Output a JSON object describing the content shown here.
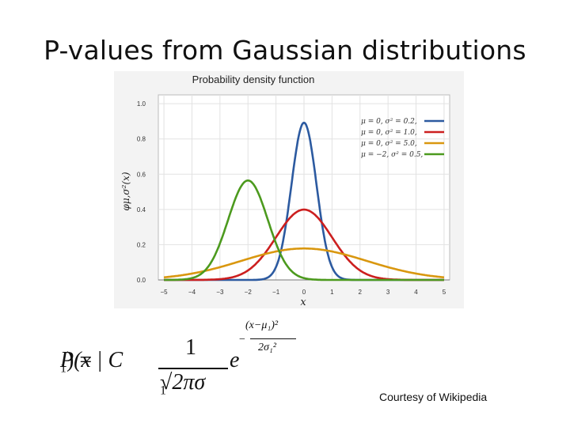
{
  "slide": {
    "title": "P-values from Gaussian distributions",
    "courtesy": "Courtesy of Wikipedia"
  },
  "formula": {
    "lhs": "P(x | C",
    "lhs_sub": "1",
    "lhs_end": ") =",
    "numerator": "1",
    "denominator": "√2πσ",
    "denominator_sub": "1",
    "base": "e",
    "exponent_sign": "−",
    "exponent_num": "(x−μ₁)²",
    "exponent_den": "2σ₁²"
  },
  "chart_data": {
    "type": "line",
    "title": "Probability density function",
    "xlabel": "x",
    "ylabel": "φμ,σ²(x)",
    "xlim": [
      -5.2,
      5.2
    ],
    "ylim": [
      0,
      1.05
    ],
    "xticks": [
      -5,
      -4,
      -3,
      -2,
      -1,
      0,
      1,
      2,
      3,
      4,
      5
    ],
    "yticks": [
      0.0,
      0.2,
      0.4,
      0.6,
      0.8,
      1.0
    ],
    "ytick_labels": [
      "0.0",
      "0.2",
      "0.4",
      "0.6",
      "0.8",
      "1.0"
    ],
    "grid": true,
    "legend_position": "top-right",
    "series": [
      {
        "name": "μ = 0,  σ² = 0.2,",
        "mu": 0,
        "var": 0.2,
        "color": "#2c5aa0"
      },
      {
        "name": "μ = 0,  σ² = 1.0,",
        "mu": 0,
        "var": 1.0,
        "color": "#cc1f1f"
      },
      {
        "name": "μ = 0,  σ² = 5.0,",
        "mu": 0,
        "var": 5.0,
        "color": "#d9970f"
      },
      {
        "name": "μ = −2,  σ² = 0.5,",
        "mu": -2,
        "var": 0.5,
        "color": "#4c9a1e"
      }
    ]
  }
}
